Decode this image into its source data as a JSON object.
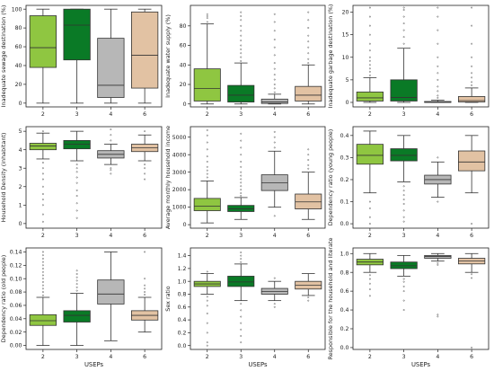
{
  "colors": {
    "2": "#8fc641",
    "3": "#0a7a26",
    "4": "#b7b7b7",
    "6": "#e2c2a3"
  },
  "chart_data": [
    {
      "type": "box",
      "ylabel": "Inadequate sewage destination (%)",
      "categories": [
        "2",
        "3",
        "4",
        "6"
      ],
      "ylim": [
        -4,
        104
      ],
      "yticks": [
        0,
        20,
        40,
        60,
        80,
        100
      ],
      "ytick_labels": [
        "0",
        "20",
        "40",
        "60",
        "80",
        "100"
      ],
      "boxes": [
        {
          "min": 0,
          "q1": 38,
          "median": 59,
          "q3": 93,
          "max": 100,
          "outliers": []
        },
        {
          "min": 0,
          "q1": 46,
          "median": 83,
          "q3": 100,
          "max": 100,
          "outliers": []
        },
        {
          "min": 0,
          "q1": 6,
          "median": 19,
          "q3": 69,
          "max": 100,
          "outliers": []
        },
        {
          "min": 0,
          "q1": 16,
          "median": 51,
          "q3": 97,
          "max": 100,
          "outliers": []
        }
      ]
    },
    {
      "type": "box",
      "ylabel": "Inadequate water supply (%)",
      "categories": [
        "2",
        "3",
        "4",
        "6"
      ],
      "ylim": [
        -3,
        101
      ],
      "yticks": [
        0,
        20,
        40,
        60,
        80
      ],
      "ytick_labels": [
        "0",
        "20",
        "40",
        "60",
        "80"
      ],
      "boxes": [
        {
          "min": 0,
          "q1": 3,
          "median": 16,
          "q3": 36,
          "max": 82,
          "outliers": [
            84,
            88,
            90,
            92
          ]
        },
        {
          "min": 0,
          "q1": 2,
          "median": 9,
          "q3": 19,
          "max": 42,
          "outliers": [
            44,
            48,
            52,
            56,
            60,
            65,
            70,
            75,
            80,
            86,
            90,
            94
          ]
        },
        {
          "min": 0,
          "q1": 0.5,
          "median": 2,
          "q3": 5,
          "max": 10,
          "outliers": [
            12,
            16,
            20,
            25,
            30,
            36,
            42,
            50,
            58,
            66,
            75,
            84,
            92
          ]
        },
        {
          "min": 0,
          "q1": 3,
          "median": 9,
          "q3": 18,
          "max": 40,
          "outliers": [
            42,
            46,
            52,
            58,
            64,
            70,
            78,
            86,
            94
          ]
        }
      ]
    },
    {
      "type": "box",
      "ylabel": "Inadequate garbage destination (%)",
      "categories": [
        "2",
        "3",
        "4",
        "6"
      ],
      "ylim": [
        -1,
        21.5
      ],
      "yticks": [
        0,
        5,
        10,
        15,
        20
      ],
      "ytick_labels": [
        "0",
        "5",
        "10",
        "15",
        "20"
      ],
      "boxes": [
        {
          "min": 0,
          "q1": 0.3,
          "median": 1.0,
          "q3": 2.3,
          "max": 5.5,
          "outliers": [
            6,
            6.8,
            7.5,
            8.3,
            9.2,
            10,
            11.5,
            13,
            15,
            17,
            19,
            21
          ]
        },
        {
          "min": 0,
          "q1": 0.3,
          "median": 1.1,
          "q3": 5.0,
          "max": 12,
          "outliers": [
            13,
            14.5,
            16,
            17.5,
            19,
            20.5,
            21
          ]
        },
        {
          "min": 0,
          "q1": 0,
          "median": 0,
          "q3": 0.2,
          "max": 0.5,
          "outliers": [
            1,
            1.5,
            2.5,
            3.5,
            5,
            6.5,
            8,
            10,
            13,
            16,
            19,
            21
          ]
        },
        {
          "min": 0,
          "q1": 0.1,
          "median": 0.4,
          "q3": 1.3,
          "max": 3.2,
          "outliers": [
            3.8,
            4.5,
            5.5,
            6.5,
            8,
            10,
            13,
            17,
            21
          ]
        }
      ]
    },
    {
      "type": "box",
      "ylabel": "Household Density (inhabitant)",
      "categories": [
        "2",
        "3",
        "4",
        "6"
      ],
      "ylim": [
        -0.25,
        5.25
      ],
      "yticks": [
        0,
        1,
        2,
        3,
        4,
        5
      ],
      "ytick_labels": [
        "0",
        "1",
        "2",
        "3",
        "4",
        "5"
      ],
      "boxes": [
        {
          "min": 3.5,
          "q1": 4.0,
          "median": 4.2,
          "q3": 4.35,
          "max": 4.9,
          "outliers": [
            3.3,
            3.0,
            2.7,
            2.4,
            2.0,
            1.6,
            1.3,
            1.0,
            0.5,
            0.1,
            5.0
          ]
        },
        {
          "min": 3.4,
          "q1": 4.05,
          "median": 4.3,
          "q3": 4.5,
          "max": 5.0,
          "outliers": [
            3.2,
            3.0,
            2.8,
            2.5,
            2.2,
            1.8,
            1.5,
            1.1,
            0.7,
            0.3
          ]
        },
        {
          "min": 3.2,
          "q1": 3.55,
          "median": 3.75,
          "q3": 3.95,
          "max": 4.3,
          "outliers": [
            3.0,
            2.9,
            2.7,
            4.5,
            4.8,
            5.1
          ]
        },
        {
          "min": 3.4,
          "q1": 3.9,
          "median": 4.1,
          "q3": 4.3,
          "max": 4.8,
          "outliers": [
            3.2,
            3.0,
            2.7,
            2.4,
            5.0
          ]
        }
      ]
    },
    {
      "type": "box",
      "ylabel": "Average monthly household income",
      "categories": [
        "2",
        "3",
        "4",
        "6"
      ],
      "ylim": [
        -200,
        5600
      ],
      "yticks": [
        0,
        1000,
        2000,
        3000,
        4000,
        5000
      ],
      "ytick_labels": [
        "0",
        "1000",
        "2000",
        "3000",
        "4000",
        "5000"
      ],
      "boxes": [
        {
          "min": 100,
          "q1": 800,
          "median": 1050,
          "q3": 1500,
          "max": 2500,
          "outliers": [
            2700,
            2900,
            3100,
            3300,
            3600,
            3900,
            4300,
            4700,
            5100,
            5400
          ]
        },
        {
          "min": 300,
          "q1": 750,
          "median": 900,
          "q3": 1100,
          "max": 1550,
          "outliers": [
            1650,
            1800,
            2000,
            2200,
            2400,
            2600,
            2800,
            3000,
            3300,
            3600,
            4000,
            4400,
            4800,
            5200
          ]
        },
        {
          "min": 1000,
          "q1": 1950,
          "median": 2400,
          "q3": 2850,
          "max": 4200,
          "outliers": [
            4400,
            4700,
            5000,
            5300,
            500
          ]
        },
        {
          "min": 300,
          "q1": 900,
          "median": 1300,
          "q3": 1750,
          "max": 3000,
          "outliers": [
            3200,
            3400,
            3700,
            4000,
            4300
          ]
        }
      ]
    },
    {
      "type": "box",
      "ylabel": "Dependency ratio (young people)",
      "categories": [
        "2",
        "3",
        "4",
        "6"
      ],
      "ylim": [
        -0.02,
        0.44
      ],
      "yticks": [
        0.0,
        0.1,
        0.2,
        0.3,
        0.4
      ],
      "ytick_labels": [
        "0.0",
        "0.1",
        "0.2",
        "0.3",
        "0.4"
      ],
      "boxes": [
        {
          "min": 0.14,
          "q1": 0.27,
          "median": 0.31,
          "q3": 0.36,
          "max": 0.42,
          "outliers": [
            0.1,
            0.07,
            0.03,
            0.0
          ]
        },
        {
          "min": 0.19,
          "q1": 0.285,
          "median": 0.31,
          "q3": 0.34,
          "max": 0.4,
          "outliers": [
            0.17,
            0.15,
            0.13,
            0.11,
            0.09,
            0.06,
            0.03,
            0.01
          ]
        },
        {
          "min": 0.12,
          "q1": 0.18,
          "median": 0.2,
          "q3": 0.22,
          "max": 0.28,
          "outliers": [
            0.3,
            0.1
          ]
        },
        {
          "min": 0.14,
          "q1": 0.24,
          "median": 0.28,
          "q3": 0.33,
          "max": 0.4,
          "outliers": [
            0.0
          ]
        }
      ]
    },
    {
      "type": "box",
      "ylabel": "Dependency ratio (old people)",
      "categories": [
        "2",
        "3",
        "4",
        "6"
      ],
      "ylim": [
        -0.006,
        0.146
      ],
      "yticks": [
        0.0,
        0.02,
        0.04,
        0.06,
        0.08,
        0.1,
        0.12,
        0.14
      ],
      "ytick_labels": [
        "0.00",
        "0.02",
        "0.04",
        "0.06",
        "0.08",
        "0.10",
        "0.12",
        "0.14"
      ],
      "boxes": [
        {
          "min": 0.0,
          "q1": 0.03,
          "median": 0.037,
          "q3": 0.046,
          "max": 0.072,
          "outliers": [
            0.075,
            0.08,
            0.085,
            0.09,
            0.095,
            0.1,
            0.105,
            0.11,
            0.115,
            0.12,
            0.125,
            0.13,
            0.135,
            0.14
          ]
        },
        {
          "min": 0.0,
          "q1": 0.035,
          "median": 0.045,
          "q3": 0.052,
          "max": 0.078,
          "outliers": [
            0.082,
            0.087,
            0.092,
            0.097,
            0.102,
            0.107,
            0.112
          ]
        },
        {
          "min": 0.007,
          "q1": 0.062,
          "median": 0.077,
          "q3": 0.098,
          "max": 0.14,
          "outliers": []
        },
        {
          "min": 0.02,
          "q1": 0.038,
          "median": 0.045,
          "q3": 0.052,
          "max": 0.072,
          "outliers": [
            0.076,
            0.08,
            0.085,
            0.09,
            0.1,
            0.14
          ]
        }
      ]
    },
    {
      "type": "box",
      "ylabel": "Sex ratio",
      "categories": [
        "2",
        "3",
        "4",
        "6"
      ],
      "ylim": [
        -0.06,
        1.52
      ],
      "yticks": [
        0.0,
        0.2,
        0.4,
        0.6,
        0.8,
        1.0,
        1.2,
        1.4
      ],
      "ytick_labels": [
        "0.0",
        "0.2",
        "0.4",
        "0.6",
        "0.8",
        "1.0",
        "1.2",
        "1.4"
      ],
      "boxes": [
        {
          "min": 0.8,
          "q1": 0.92,
          "median": 0.96,
          "q3": 1.0,
          "max": 1.12,
          "outliers": [
            0.76,
            0.7,
            0.62,
            0.5,
            0.35,
            0.2,
            0.05,
            0.0,
            1.15
          ]
        },
        {
          "min": 0.7,
          "q1": 0.92,
          "median": 0.99,
          "q3": 1.08,
          "max": 1.27,
          "outliers": [
            0.65,
            0.55,
            0.45,
            0.35,
            0.25,
            0.15,
            0.05,
            1.3,
            1.35,
            1.4,
            1.45
          ]
        },
        {
          "min": 0.7,
          "q1": 0.8,
          "median": 0.84,
          "q3": 0.89,
          "max": 1.0,
          "outliers": [
            0.65,
            0.6,
            1.05
          ]
        },
        {
          "min": 0.78,
          "q1": 0.88,
          "median": 0.94,
          "q3": 1.0,
          "max": 1.12,
          "outliers": [
            0.75,
            0.7
          ]
        }
      ]
    },
    {
      "type": "box",
      "ylabel": "Responsible for the household and literate",
      "categories": [
        "2",
        "3",
        "4",
        "6"
      ],
      "ylim": [
        -0.02,
        1.06
      ],
      "yticks": [
        0.0,
        0.2,
        0.4,
        0.6,
        0.8,
        1.0
      ],
      "ytick_labels": [
        "0.0",
        "0.2",
        "0.4",
        "0.6",
        "0.8",
        "1.0"
      ],
      "boxes": [
        {
          "min": 0.8,
          "q1": 0.88,
          "median": 0.91,
          "q3": 0.94,
          "max": 1.0,
          "outliers": [
            0.77,
            0.73,
            0.68,
            0.62,
            0.55
          ]
        },
        {
          "min": 0.76,
          "q1": 0.84,
          "median": 0.87,
          "q3": 0.91,
          "max": 0.98,
          "outliers": [
            0.73,
            0.7,
            0.65,
            0.6,
            0.5,
            0.4
          ]
        },
        {
          "min": 0.92,
          "q1": 0.95,
          "median": 0.97,
          "q3": 0.98,
          "max": 1.0,
          "outliers": [
            0.9,
            0.88,
            0.35,
            0.33
          ]
        },
        {
          "min": 0.8,
          "q1": 0.89,
          "median": 0.92,
          "q3": 0.95,
          "max": 1.0,
          "outliers": [
            0.78,
            0.74,
            0.0
          ]
        }
      ]
    }
  ],
  "x_axis_title": "USEPs"
}
